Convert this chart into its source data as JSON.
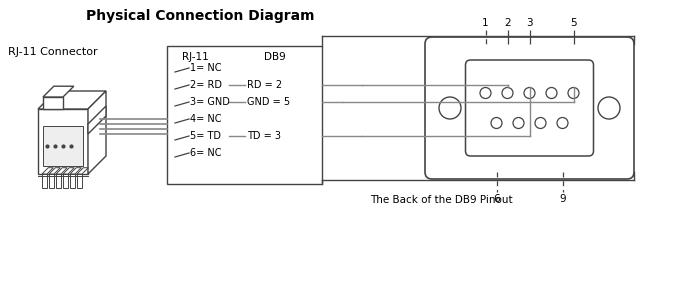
{
  "title": "Physical Connection Diagram",
  "background_color": "#ffffff",
  "line_color": "#444444",
  "gray_color": "#888888",
  "text_color": "#000000",
  "rj11_label": "RJ-11 Connector",
  "rj11_pins": [
    "1= NC",
    "2= RD",
    "3= GND",
    "4= NC",
    "5= TD",
    "6= NC"
  ],
  "db9_label": "DB9",
  "rj11_header": "RJ-11",
  "bottom_label": "The Back of the DB9 Pinout",
  "pin_numbers_top": [
    "1",
    "2",
    "3",
    "5"
  ],
  "pin_numbers_bottom": [
    "6",
    "9"
  ],
  "rd_label": "RD = 2",
  "gnd_label": "GND = 5",
  "td_label": "TD = 3"
}
